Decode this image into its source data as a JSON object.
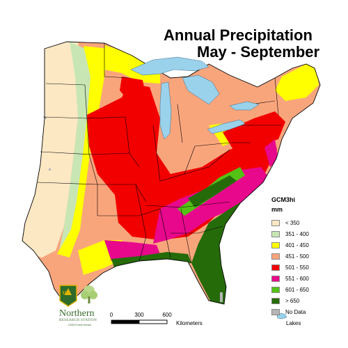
{
  "title": {
    "line1": "Annual Precipitation",
    "line2": "May - September"
  },
  "legend": {
    "model": "GCM3hi",
    "unit": "mm",
    "items": [
      {
        "label": "< 350",
        "color": "#fde8c4"
      },
      {
        "label": "351 - 400",
        "color": "#c8e6b4"
      },
      {
        "label": "401 - 450",
        "color": "#ffff00"
      },
      {
        "label": "451 - 500",
        "color": "#f9a57c"
      },
      {
        "label": "501 - 550",
        "color": "#f20000"
      },
      {
        "label": "551 - 600",
        "color": "#e8088c"
      },
      {
        "label": "601 - 650",
        "color": "#54c214"
      },
      {
        "label": "> 650",
        "color": "#266b0a"
      },
      {
        "label": "No Data",
        "color": "#b5b5b5"
      }
    ],
    "lakes_label": "Lakes",
    "lakes_color": "#9ad2ec"
  },
  "scale": {
    "ticks": [
      "0",
      "300",
      "600"
    ],
    "unit": "Kilometers"
  },
  "logo": {
    "badge_text": "US",
    "name": "Northern",
    "station": "RESEARCH STATION",
    "tagline": "USDA Forest Service"
  }
}
